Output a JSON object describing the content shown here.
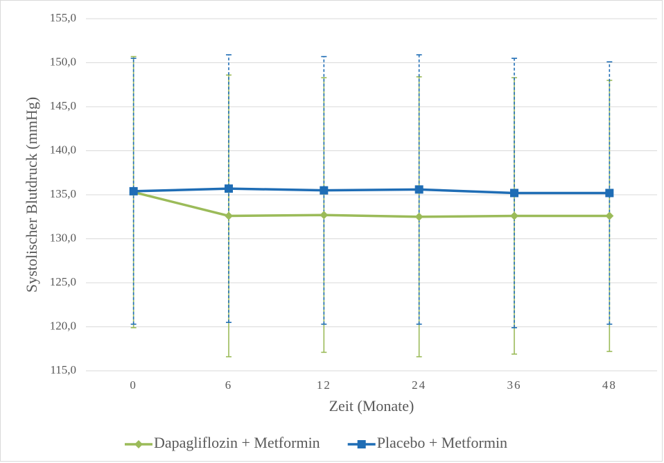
{
  "chart_data": {
    "type": "line",
    "x_label": "Zeit (Monate)",
    "y_label": "Systolischer Blutdruck (mmHg)",
    "categories": [
      "0",
      "6",
      "12",
      "24",
      "36",
      "48"
    ],
    "series": [
      {
        "name": "Dapagliflozin + Metformin",
        "color": "#9bbb59",
        "marker": "diamond",
        "error_style": "solid",
        "values": [
          135.3,
          132.6,
          132.7,
          132.5,
          132.6,
          132.6
        ],
        "errors": [
          15.4,
          16.0,
          15.6,
          15.9,
          15.7,
          15.4
        ]
      },
      {
        "name": "Placebo + Metformin",
        "color": "#1f6db5",
        "marker": "square",
        "error_style": "dashed",
        "values": [
          135.4,
          135.7,
          135.5,
          135.6,
          135.2,
          135.2
        ],
        "errors": [
          15.1,
          15.2,
          15.2,
          15.3,
          15.3,
          14.9
        ]
      }
    ],
    "ylim": [
      115,
      155
    ],
    "yticks": [
      {
        "value": 115,
        "label": "115,0"
      },
      {
        "value": 120,
        "label": "120,0"
      },
      {
        "value": 125,
        "label": "125,0"
      },
      {
        "value": 130,
        "label": "130,0"
      },
      {
        "value": 135,
        "label": "135,0"
      },
      {
        "value": 140,
        "label": "140,0"
      },
      {
        "value": 145,
        "label": "145,0"
      },
      {
        "value": 150,
        "label": "150,0"
      },
      {
        "value": 155,
        "label": "155,0"
      }
    ],
    "grid": true,
    "legend": "bottom"
  }
}
